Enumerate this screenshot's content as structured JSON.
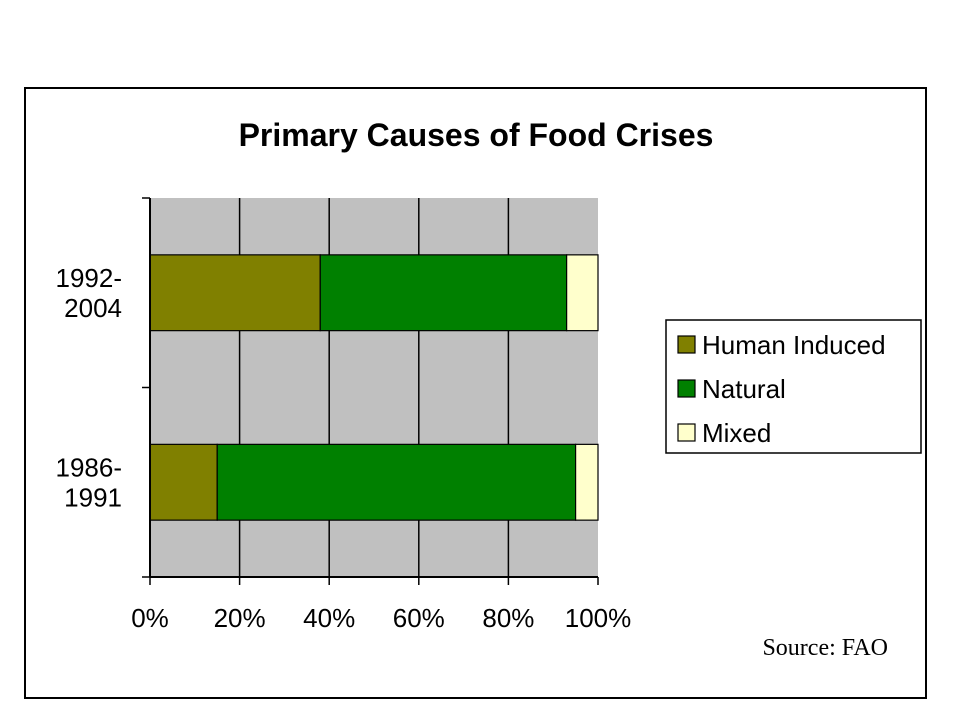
{
  "chart_data": {
    "type": "bar",
    "orientation": "horizontal",
    "stacked": "percent",
    "title": "Primary Causes of Food Crises",
    "categories": [
      "1992-\n2004",
      "1986-\n1991"
    ],
    "series": [
      {
        "name": "Human Induced",
        "color": "#808000",
        "values": [
          38,
          15
        ]
      },
      {
        "name": "Natural",
        "color": "#008000",
        "values": [
          55,
          80
        ]
      },
      {
        "name": "Mixed",
        "color": "#FFFFCC",
        "values": [
          7,
          5
        ]
      }
    ],
    "xlim": [
      0,
      100
    ],
    "x_ticks": [
      "0%",
      "20%",
      "40%",
      "60%",
      "80%",
      "100%"
    ],
    "grid": true,
    "plot_background": "#C0C0C0",
    "legend_position": "right",
    "source_note": "Source: FAO"
  }
}
